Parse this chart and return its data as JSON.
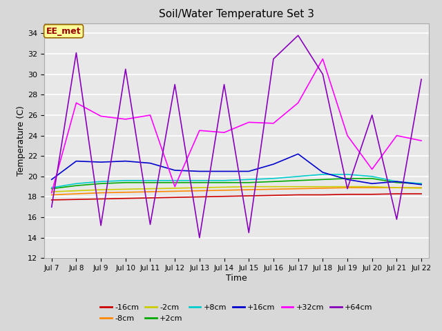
{
  "title": "Soil/Water Temperature Set 3",
  "xlabel": "Time",
  "ylabel": "Temperature (C)",
  "ylim": [
    12,
    35
  ],
  "yticks": [
    12,
    14,
    16,
    18,
    20,
    22,
    24,
    26,
    28,
    30,
    32,
    34
  ],
  "bg_color": "#d8d8d8",
  "plot_bg_color": "#e8e8e8",
  "annotation_text": "EE_met",
  "annotation_bg": "#ffff99",
  "annotation_border": "#996600",
  "annotation_text_color": "#990000",
  "series": {
    "-16cm": {
      "color": "#cc0000"
    },
    "-8cm": {
      "color": "#ff8800"
    },
    "-2cm": {
      "color": "#cccc00"
    },
    "+2cm": {
      "color": "#00aa00"
    },
    "+8cm": {
      "color": "#00cccc"
    },
    "+16cm": {
      "color": "#0000cc"
    },
    "+32cm": {
      "color": "#ff00ff"
    },
    "+64cm": {
      "color": "#8800bb"
    }
  },
  "x_labels": [
    "Jul 7",
    "Jul 8",
    "Jul 9",
    "Jul 10",
    "Jul 11",
    "Jul 12",
    "Jul 13",
    "Jul 14",
    "Jul 15",
    "Jul 16",
    "Jul 17",
    "Jul 18",
    "Jul 19",
    "Jul 20",
    "Jul 21",
    "Jul 22"
  ],
  "n_days": 16,
  "data": {
    "-16cm": [
      17.7,
      17.75,
      17.8,
      17.85,
      17.9,
      17.95,
      18.0,
      18.05,
      18.1,
      18.15,
      18.2,
      18.2,
      18.25,
      18.25,
      18.3,
      18.3
    ],
    "-8cm": [
      18.2,
      18.3,
      18.4,
      18.45,
      18.5,
      18.55,
      18.6,
      18.65,
      18.7,
      18.75,
      18.8,
      18.85,
      18.9,
      18.9,
      18.9,
      18.9
    ],
    "-2cm": [
      18.5,
      18.6,
      18.7,
      18.75,
      18.8,
      18.85,
      18.9,
      18.95,
      19.0,
      19.0,
      19.0,
      19.0,
      19.0,
      19.0,
      18.9,
      18.85
    ],
    "+2cm": [
      18.8,
      19.1,
      19.3,
      19.4,
      19.4,
      19.4,
      19.4,
      19.4,
      19.4,
      19.5,
      19.6,
      19.7,
      19.8,
      19.8,
      19.4,
      19.3
    ],
    "+8cm": [
      18.9,
      19.3,
      19.5,
      19.6,
      19.6,
      19.6,
      19.6,
      19.6,
      19.7,
      19.8,
      20.0,
      20.2,
      20.2,
      20.0,
      19.5,
      19.3
    ],
    "+16cm": [
      19.7,
      21.5,
      21.4,
      21.5,
      21.3,
      20.6,
      20.5,
      20.5,
      20.5,
      21.2,
      22.2,
      20.4,
      19.7,
      19.3,
      19.5,
      19.2
    ],
    "+32cm": [
      18.4,
      27.2,
      25.9,
      25.6,
      26.0,
      19.0,
      24.5,
      24.3,
      25.3,
      25.2,
      27.2,
      31.5,
      24.0,
      20.7,
      24.0,
      23.5
    ],
    "+64cm": [
      17.0,
      32.1,
      15.2,
      30.5,
      15.3,
      29.0,
      14.0,
      29.0,
      14.5,
      31.5,
      33.8,
      30.0,
      18.8,
      26.0,
      15.8,
      29.5
    ]
  }
}
